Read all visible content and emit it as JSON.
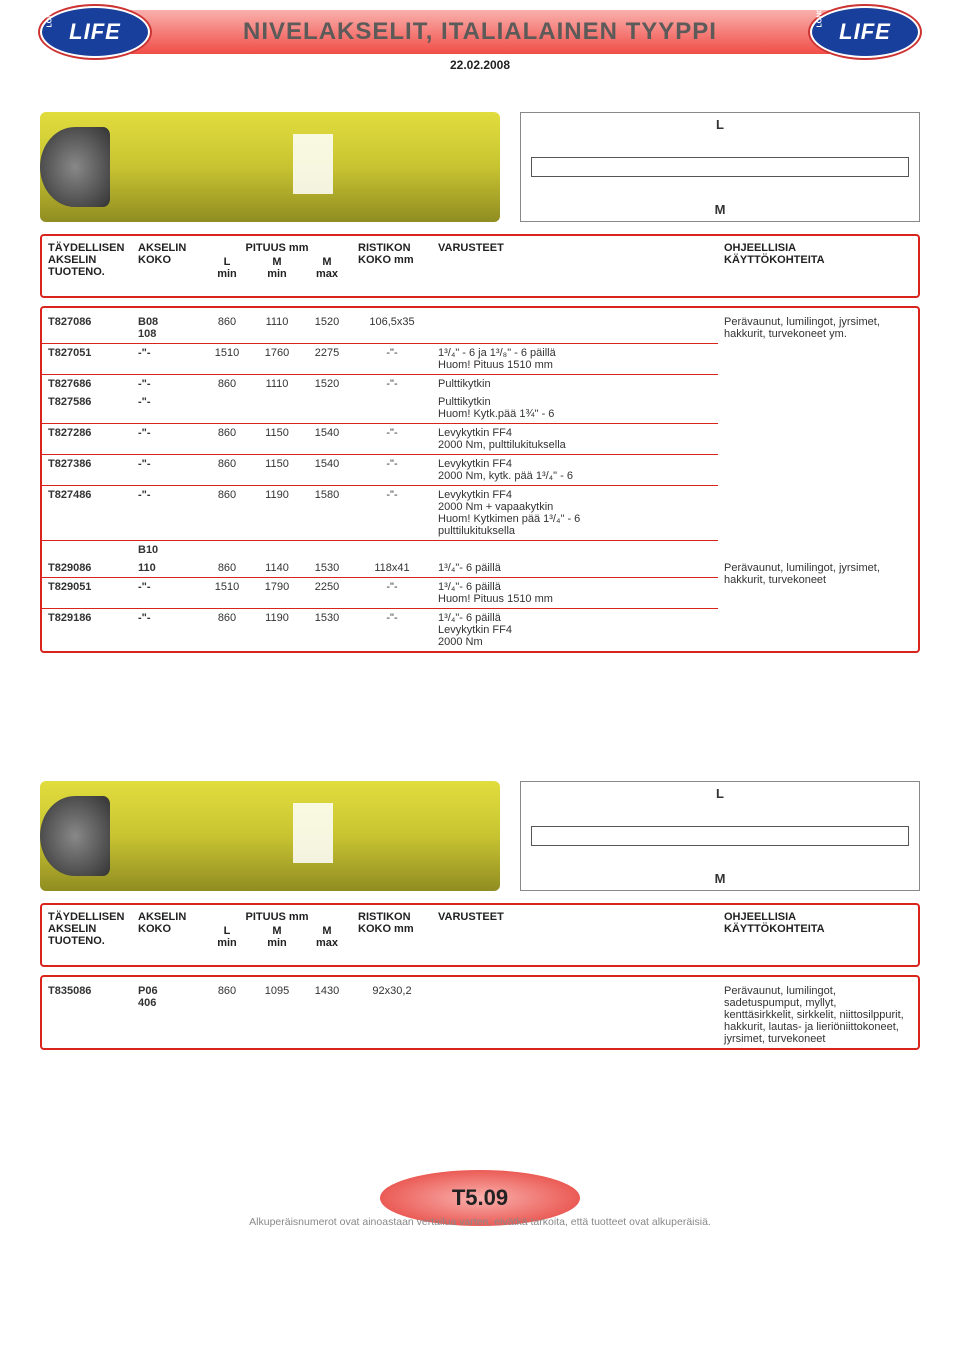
{
  "header": {
    "title": "NIVELAKSELIT, ITALIALAINEN TYYPPI",
    "date": "22.02.2008",
    "logo_text": "LIFE",
    "logo_sub": "LONG"
  },
  "diagram": {
    "L": "L",
    "M": "M"
  },
  "columns": {
    "tuoteno": "TÄYDELLISEN\nAKSELIN\nTUOTENO.",
    "koko": "AKSELIN\nKOKO",
    "pituus": "PITUUS mm",
    "L": "L\nmin",
    "Mmin": "M\nmin",
    "Mmax": "M\nmax",
    "ristikon": "RISTIKON\nKOKO mm",
    "varusteet": "VARUSTEET",
    "ohjeellisia": "OHJEELLISIA\nKÄYTTÖKOHTEITA"
  },
  "table1": {
    "rows": [
      {
        "tuoteno": "T827086",
        "koko": "B08\n108",
        "L": "860",
        "Mmin": "1110",
        "Mmax": "1520",
        "ristikon": "106,5x35",
        "var": "",
        "ohj": "Perävaunut, lumilingot, jyrsimet, hakkurit, turvekoneet ym."
      },
      {
        "tuoteno": "T827051",
        "koko": "-\"-",
        "L": "1510",
        "Mmin": "1760",
        "Mmax": "2275",
        "ristikon": "-\"-",
        "var": "1³/₄\" - 6  ja 1³/₈\" - 6 päillä\nHuom! Pituus 1510 mm",
        "ohj": ""
      },
      {
        "tuoteno": "T827686",
        "koko": "-\"-",
        "L": "860",
        "Mmin": "1110",
        "Mmax": "1520",
        "ristikon": "-\"-",
        "var": "Pulttikytkin",
        "ohj": ""
      },
      {
        "tuoteno": "T827586",
        "koko": "-\"-",
        "L": "",
        "Mmin": "",
        "Mmax": "",
        "ristikon": "",
        "var": "Pulttikytkin\nHuom! Kytk.pää 1¾\" - 6",
        "ohj": ""
      },
      {
        "tuoteno": "T827286",
        "koko": "-\"-",
        "L": "860",
        "Mmin": "1150",
        "Mmax": "1540",
        "ristikon": "-\"-",
        "var": "Levykytkin FF4\n2000 Nm, pulttilukituksella",
        "ohj": ""
      },
      {
        "tuoteno": "T827386",
        "koko": "-\"-",
        "L": "860",
        "Mmin": "1150",
        "Mmax": "1540",
        "ristikon": "-\"-",
        "var": "Levykytkin FF4\n2000 Nm, kytk. pää 1³/₄\" - 6",
        "ohj": ""
      },
      {
        "tuoteno": "T827486",
        "koko": "-\"-",
        "L": "860",
        "Mmin": "1190",
        "Mmax": "1580",
        "ristikon": "-\"-",
        "var": "Levykytkin FF4\n2000 Nm + vapaakytkin\nHuom! Kytkimen pää 1³/₄\" - 6\npulttilukituksella",
        "ohj": ""
      },
      {
        "tuoteno": "",
        "koko": "B10",
        "L": "",
        "Mmin": "",
        "Mmax": "",
        "ristikon": "",
        "var": "",
        "ohj": ""
      },
      {
        "tuoteno": "T829086",
        "koko": "110",
        "L": "860",
        "Mmin": "1140",
        "Mmax": "1530",
        "ristikon": "118x41",
        "var": "1³/₄\"- 6 päillä",
        "ohj": "Perävaunut, lumilingot, jyrsimet, hakkurit, turvekoneet"
      },
      {
        "tuoteno": "T829051",
        "koko": "-\"-",
        "L": "1510",
        "Mmin": "1790",
        "Mmax": "2250",
        "ristikon": "-\"-",
        "var": "1³/₄\"- 6 päillä\nHuom! Pituus 1510 mm",
        "ohj": ""
      },
      {
        "tuoteno": "T829186",
        "koko": "-\"-",
        "L": "860",
        "Mmin": "1190",
        "Mmax": "1530",
        "ristikon": "-\"-",
        "var": "1³/₄\"- 6 päillä\nLevykytkin FF4\n2000 Nm",
        "ohj": ""
      }
    ],
    "underline_rows": [
      0,
      1,
      3,
      4,
      5,
      6,
      8,
      9
    ],
    "ohj_rowspans": {
      "0": 7,
      "8": 3
    }
  },
  "table2": {
    "rows": [
      {
        "tuoteno": "T835086",
        "koko": "P06\n406",
        "L": "860",
        "Mmin": "1095",
        "Mmax": "1430",
        "ristikon": "92x30,2",
        "var": "",
        "ohj": "Perävaunut, lumilingot, sadetuspumput, myllyt, kenttäsirkkelit, sirkkelit, niittosilppurit, hakkurit, lautas- ja lieriöniittokoneet, jyrsimet, turvekoneet"
      }
    ]
  },
  "footer": {
    "code": "T5.09",
    "note": "Alkuperäisnumerot ovat ainoastaan vertailua varten, eivätkä tarkoita, että tuotteet ovat alkuperäisiä."
  },
  "colors": {
    "red": "#d9241c",
    "header_grad_top": "#f9b0ad",
    "header_grad_bot": "#f14d47",
    "logo_bg": "#183f9c"
  }
}
